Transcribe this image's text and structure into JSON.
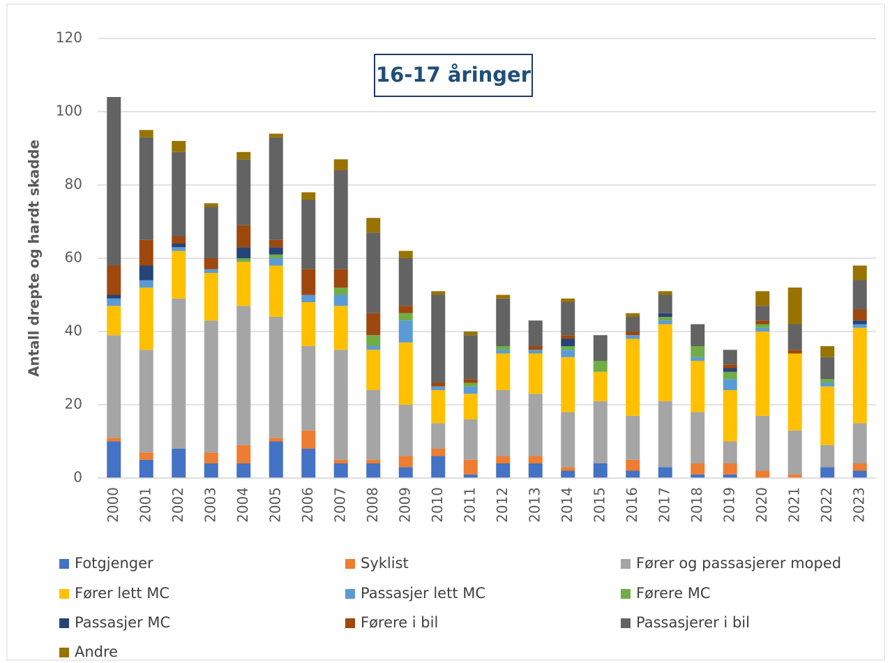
{
  "chart_data": {
    "type": "stacked_bar",
    "title": "16-17 åringer",
    "y_label": "Antall drepte og hardt skadde",
    "categories": [
      "2000",
      "2001",
      "2002",
      "2003",
      "2004",
      "2005",
      "2006",
      "2007",
      "2008",
      "2009",
      "2010",
      "2011",
      "2012",
      "2013",
      "2014",
      "2015",
      "2016",
      "2017",
      "2018",
      "2019",
      "2020",
      "2021",
      "2022",
      "2023"
    ],
    "series": [
      {
        "name": "Fotgjenger",
        "color": "#4472c4",
        "values": [
          10,
          5,
          8,
          4,
          4,
          10,
          8,
          4,
          4,
          3,
          6,
          1,
          4,
          4,
          2,
          4,
          2,
          3,
          1,
          1,
          0,
          0,
          3,
          2
        ]
      },
      {
        "name": "Syklist",
        "color": "#ed7d31",
        "values": [
          1,
          2,
          0,
          3,
          5,
          1,
          5,
          1,
          1,
          3,
          2,
          4,
          2,
          2,
          1,
          0,
          3,
          0,
          3,
          3,
          2,
          1,
          0,
          2
        ]
      },
      {
        "name": "Fører og passasjerer moped",
        "color": "#a5a5a5",
        "values": [
          28,
          28,
          41,
          36,
          38,
          33,
          23,
          30,
          19,
          14,
          7,
          11,
          18,
          17,
          15,
          17,
          12,
          18,
          14,
          6,
          15,
          12,
          6,
          11
        ]
      },
      {
        "name": "Fører lett MC",
        "color": "#ffc000",
        "values": [
          8,
          17,
          13,
          13,
          12,
          14,
          12,
          12,
          11,
          17,
          9,
          7,
          10,
          11,
          15,
          8,
          21,
          21,
          14,
          14,
          23,
          21,
          16,
          26
        ]
      },
      {
        "name": "Passasjer lett MC",
        "color": "#5b9bd5",
        "values": [
          2,
          2,
          1,
          1,
          0,
          2,
          2,
          3,
          1,
          6,
          1,
          2,
          1,
          1,
          2,
          0,
          1,
          1,
          1,
          3,
          1,
          0,
          1,
          1
        ]
      },
      {
        "name": "Førere MC",
        "color": "#70ad47",
        "values": [
          0,
          0,
          0,
          0,
          1,
          1,
          0,
          2,
          3,
          2,
          0,
          1,
          1,
          0,
          1,
          3,
          0,
          1,
          3,
          2,
          1,
          0,
          1,
          0
        ]
      },
      {
        "name": "Passasjer MC",
        "color": "#264478",
        "values": [
          1,
          4,
          1,
          0,
          3,
          2,
          0,
          0,
          0,
          0,
          0,
          0,
          0,
          0,
          2,
          0,
          0,
          1,
          0,
          1,
          0,
          0,
          0,
          1
        ]
      },
      {
        "name": "Førere i bil",
        "color": "#9e480e",
        "values": [
          8,
          7,
          2,
          3,
          6,
          2,
          7,
          5,
          6,
          2,
          1,
          1,
          0,
          1,
          1,
          0,
          1,
          0,
          0,
          1,
          1,
          1,
          0,
          3
        ]
      },
      {
        "name": "Passasjerer i bil",
        "color": "#636363",
        "values": [
          46,
          28,
          23,
          14,
          18,
          28,
          19,
          27,
          22,
          13,
          24,
          12,
          13,
          7,
          9,
          7,
          4,
          5,
          6,
          4,
          4,
          7,
          6,
          8
        ]
      },
      {
        "name": "Andre",
        "color": "#997300",
        "values": [
          0,
          2,
          3,
          1,
          2,
          1,
          2,
          3,
          4,
          2,
          1,
          1,
          1,
          0,
          1,
          0,
          1,
          1,
          0,
          0,
          4,
          10,
          3,
          4
        ]
      }
    ],
    "ylim": [
      0,
      120
    ],
    "yticks": [
      0,
      20,
      40,
      60,
      80,
      100,
      120
    ],
    "grid": true
  }
}
